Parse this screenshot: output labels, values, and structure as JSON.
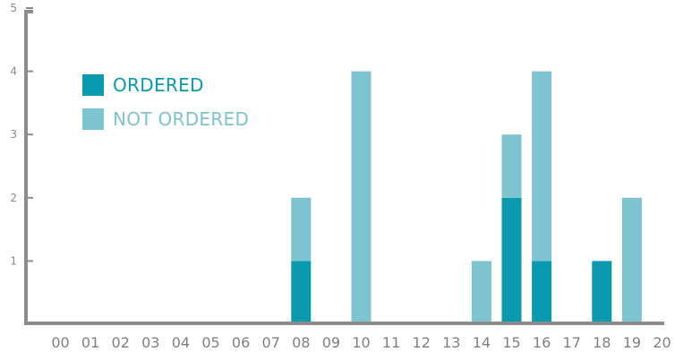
{
  "chart_data": {
    "type": "bar",
    "stacked": true,
    "categories": [
      "00",
      "01",
      "02",
      "03",
      "04",
      "05",
      "06",
      "07",
      "08",
      "09",
      "10",
      "11",
      "12",
      "13",
      "14",
      "15",
      "16",
      "17",
      "18",
      "19",
      "20"
    ],
    "series": [
      {
        "name": "ORDERED",
        "color": "#0a9ab0",
        "values": [
          0,
          0,
          0,
          0,
          0,
          0,
          0,
          0,
          1,
          0,
          0,
          0,
          0,
          0,
          0,
          2,
          1,
          0,
          1,
          0,
          0
        ]
      },
      {
        "name": "NOT ORDERED",
        "color": "#7ec4d0",
        "values": [
          0,
          0,
          0,
          0,
          0,
          0,
          0,
          0,
          1,
          0,
          4,
          0,
          0,
          0,
          1,
          1,
          3,
          0,
          0,
          2,
          0
        ]
      }
    ],
    "ylim": [
      0,
      5
    ],
    "yticks": [
      "1",
      "2",
      "3",
      "4",
      "5"
    ],
    "title": "",
    "xlabel": "",
    "ylabel": "",
    "grid": false,
    "legend_position": "top-left"
  }
}
